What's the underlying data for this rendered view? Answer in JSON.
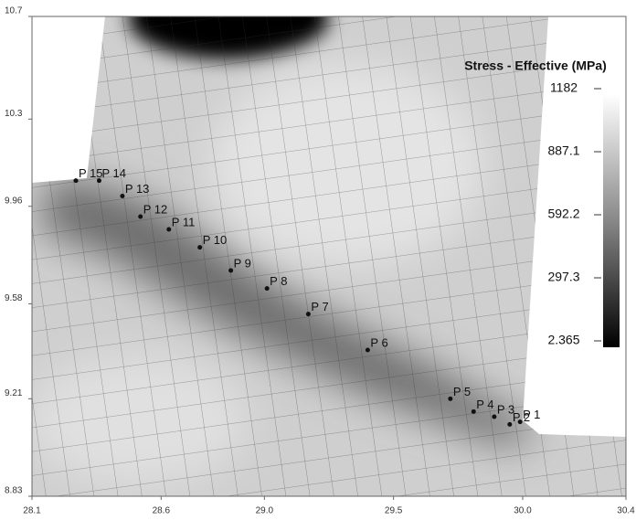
{
  "chart_data": {
    "type": "scatter",
    "colorbar_title": "Stress - Effective (MPa)",
    "clim": [
      2.365,
      1182
    ],
    "cticks": [
      1182,
      887.1,
      592.2,
      297.3,
      2.365
    ],
    "xlim": [
      28.1,
      30.4
    ],
    "ylim": [
      8.83,
      10.7
    ],
    "xticks": [
      28.1,
      28.6,
      {
        "value": 29,
        "label": "29.0"
      },
      29.5,
      {
        "value": 30,
        "label": "30.0"
      },
      30.4
    ],
    "yticks": [
      8.83,
      9.21,
      9.58,
      9.96,
      10.3,
      10.7
    ],
    "point_color": "#111111",
    "labels": [
      "P 15",
      "P 14",
      "P 13",
      "P 12",
      "P 11",
      "P 10",
      "P 9",
      "P 8",
      "P 7",
      "P 6",
      "P 5",
      "P 4",
      "P 3",
      "P 2",
      "P 1"
    ],
    "x": [
      28.27,
      28.36,
      28.45,
      28.52,
      28.63,
      28.75,
      28.87,
      29.01,
      29.17,
      29.4,
      29.72,
      29.81,
      29.89,
      29.95,
      29.99
    ],
    "y": [
      10.06,
      10.06,
      10.0,
      9.92,
      9.87,
      9.8,
      9.71,
      9.64,
      9.54,
      9.4,
      9.21,
      9.16,
      9.14,
      9.11,
      9.12
    ]
  }
}
